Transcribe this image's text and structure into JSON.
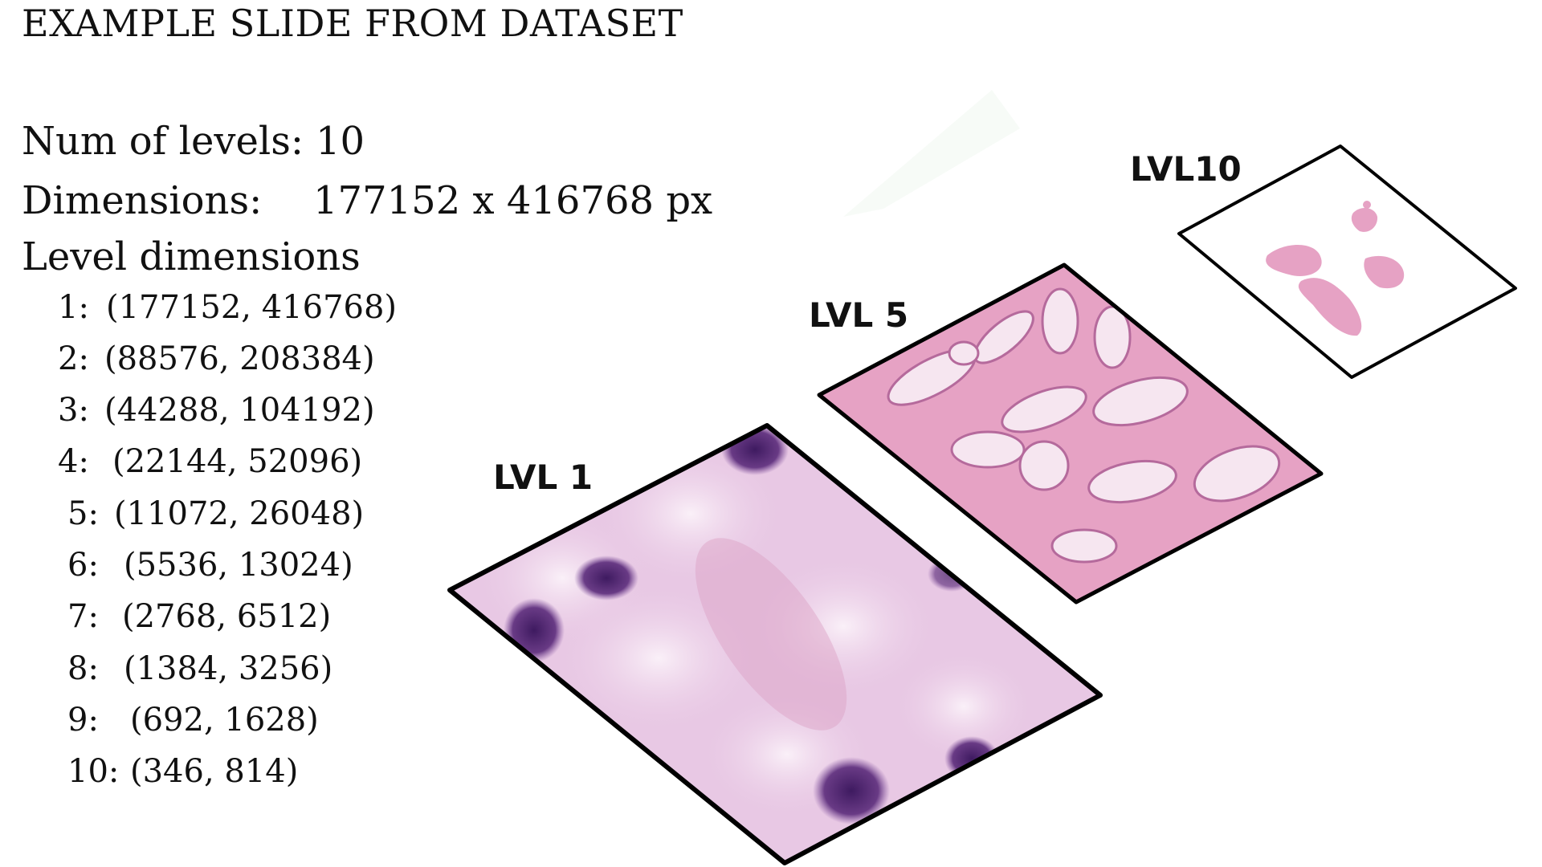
{
  "title": "EXAMPLE SLIDE FROM DATASET",
  "num_levels": {
    "label": "Num of levels:",
    "value": "10"
  },
  "dimensions": {
    "label": "Dimensions:",
    "value": "177152 x 416768 px"
  },
  "level_dimensions": {
    "heading": "Level dimensions",
    "rows": [
      {
        "level": "1:",
        "dims": "(177152, 416768)"
      },
      {
        "level": "2:",
        "dims": "(88576, 208384)"
      },
      {
        "level": "3:",
        "dims": "(44288, 104192)"
      },
      {
        "level": "4:",
        "dims": "(22144, 52096)"
      },
      {
        "level": "5:",
        "dims": "(11072, 26048)"
      },
      {
        "level": "6:",
        "dims": "(5536, 13024)"
      },
      {
        "level": "7:",
        "dims": "(2768, 6512)"
      },
      {
        "level": "8:",
        "dims": "(1384, 3256)"
      },
      {
        "level": "9:",
        "dims": "(692, 1628)"
      },
      {
        "level": "10:",
        "dims": "(346, 814)"
      }
    ]
  },
  "layers": {
    "lvl1_label": "LVL 1",
    "lvl5_label": "LVL 5",
    "lvl10_label": "LVL10"
  },
  "colors": {
    "tissue_light": "#f0dcec",
    "tissue_pink": "#e6a2c4",
    "tissue_purple": "#c49bcc",
    "nucleus": "#5a2a7a",
    "border": "#000000"
  }
}
